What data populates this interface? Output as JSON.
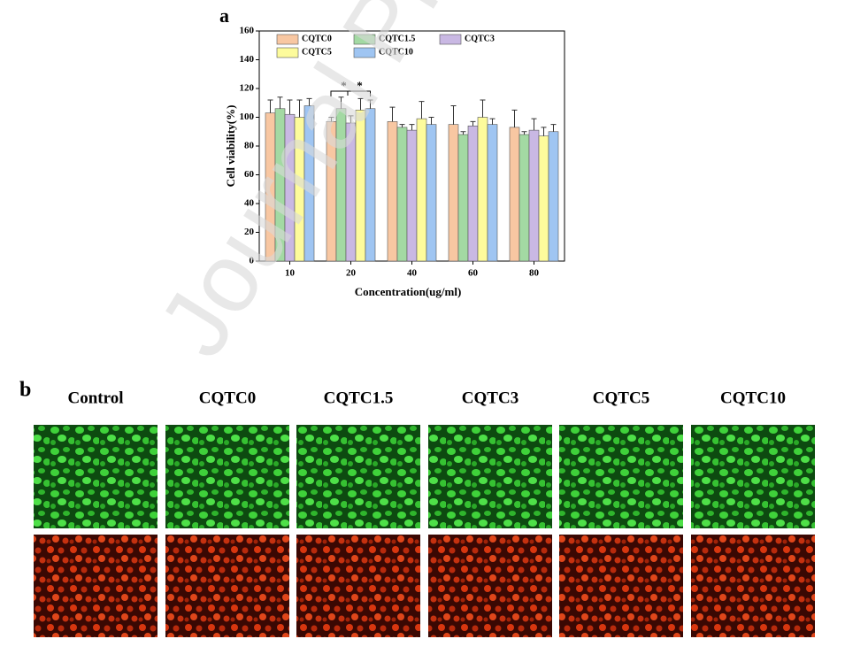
{
  "chart_data": {
    "type": "bar",
    "panel_label": "a",
    "xlabel": "Concentration(ug/ml)",
    "ylabel": "Cell viability(%)",
    "categories": [
      "10",
      "20",
      "40",
      "60",
      "80"
    ],
    "series": [
      {
        "name": "CQTC0",
        "color": "#f8c7a2",
        "values": [
          103,
          97,
          97,
          95,
          93
        ],
        "errors": [
          9,
          3,
          10,
          13,
          12
        ]
      },
      {
        "name": "CQTC1.5",
        "color": "#a3d9a3",
        "values": [
          106,
          106,
          93,
          88,
          88
        ],
        "errors": [
          8,
          8,
          2,
          2,
          2
        ]
      },
      {
        "name": "CQTC3",
        "color": "#c9b8e3",
        "values": [
          102,
          96,
          91,
          94,
          91
        ],
        "errors": [
          10,
          5,
          4,
          3,
          8
        ]
      },
      {
        "name": "CQTC5",
        "color": "#fdfb9c",
        "values": [
          100,
          105,
          99,
          100,
          87
        ],
        "errors": [
          12,
          8,
          12,
          12,
          6
        ]
      },
      {
        "name": "CQTC10",
        "color": "#9fc5f2",
        "values": [
          108,
          106,
          95,
          95,
          90
        ],
        "errors": [
          5,
          6,
          5,
          4,
          5
        ]
      }
    ],
    "annotations": [
      "*",
      "*"
    ],
    "ylim": [
      0,
      160
    ],
    "yticks": [
      0,
      20,
      40,
      60,
      80,
      100,
      120,
      140,
      160
    ],
    "legend": "upper left"
  },
  "watermark": "Journal Pre-proof",
  "panel_b": {
    "label": "b",
    "columns": [
      "Control",
      "CQTC0",
      "CQTC1.5",
      "CQTC3",
      "CQTC5",
      "CQTC10"
    ]
  }
}
